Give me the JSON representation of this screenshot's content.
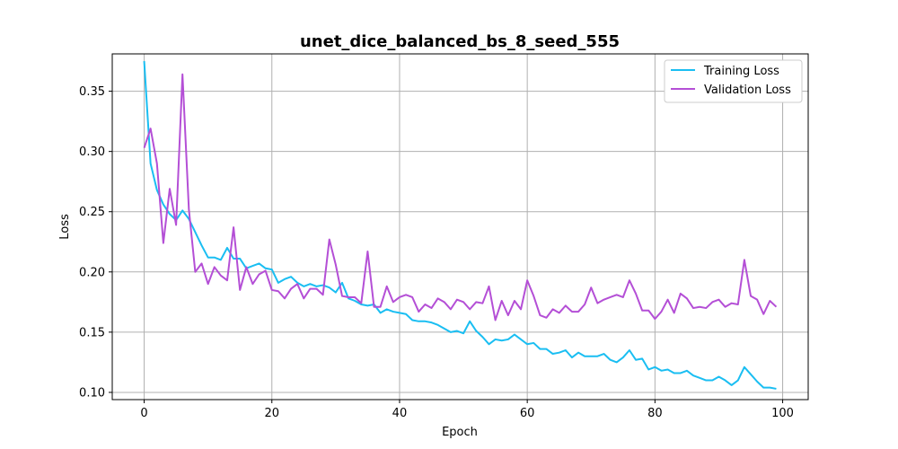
{
  "chart_data": {
    "type": "line",
    "title": "unet_dice_balanced_bs_8_seed_555",
    "xlabel": "Epoch",
    "ylabel": "Loss",
    "xlim": [
      -5,
      104
    ],
    "ylim": [
      0.094,
      0.381
    ],
    "xticks": [
      0,
      20,
      40,
      60,
      80,
      100
    ],
    "yticks": [
      0.1,
      0.15,
      0.2,
      0.25,
      0.3,
      0.35
    ],
    "xtick_labels": [
      "0",
      "20",
      "40",
      "60",
      "80",
      "100"
    ],
    "ytick_labels": [
      "0.10",
      "0.15",
      "0.20",
      "0.25",
      "0.30",
      "0.35"
    ],
    "grid": true,
    "legend_position": "top-right",
    "series": [
      {
        "name": "Training Loss",
        "color": "#1ABEF2",
        "values": [
          0.375,
          0.29,
          0.268,
          0.256,
          0.248,
          0.243,
          0.251,
          0.244,
          0.233,
          0.222,
          0.212,
          0.212,
          0.21,
          0.22,
          0.211,
          0.211,
          0.203,
          0.205,
          0.207,
          0.203,
          0.202,
          0.191,
          0.194,
          0.196,
          0.191,
          0.188,
          0.19,
          0.188,
          0.189,
          0.187,
          0.183,
          0.191,
          0.178,
          0.176,
          0.173,
          0.172,
          0.173,
          0.166,
          0.169,
          0.167,
          0.166,
          0.165,
          0.16,
          0.159,
          0.159,
          0.158,
          0.156,
          0.153,
          0.15,
          0.151,
          0.149,
          0.159,
          0.151,
          0.146,
          0.14,
          0.144,
          0.143,
          0.144,
          0.148,
          0.144,
          0.14,
          0.141,
          0.136,
          0.136,
          0.132,
          0.133,
          0.135,
          0.129,
          0.133,
          0.13,
          0.13,
          0.13,
          0.132,
          0.127,
          0.125,
          0.129,
          0.135,
          0.127,
          0.128,
          0.119,
          0.121,
          0.118,
          0.119,
          0.116,
          0.116,
          0.118,
          0.114,
          0.112,
          0.11,
          0.11,
          0.113,
          0.11,
          0.106,
          0.11,
          0.121,
          0.115,
          0.109,
          0.104,
          0.104,
          0.103
        ]
      },
      {
        "name": "Validation Loss",
        "color": "#B44FD6",
        "values": [
          0.303,
          0.319,
          0.29,
          0.224,
          0.269,
          0.239,
          0.364,
          0.252,
          0.2,
          0.207,
          0.19,
          0.204,
          0.197,
          0.193,
          0.237,
          0.185,
          0.204,
          0.19,
          0.198,
          0.201,
          0.185,
          0.184,
          0.178,
          0.186,
          0.19,
          0.178,
          0.186,
          0.186,
          0.181,
          0.227,
          0.206,
          0.18,
          0.179,
          0.179,
          0.174,
          0.217,
          0.171,
          0.171,
          0.188,
          0.175,
          0.179,
          0.181,
          0.179,
          0.167,
          0.173,
          0.17,
          0.178,
          0.175,
          0.169,
          0.177,
          0.175,
          0.169,
          0.175,
          0.174,
          0.188,
          0.16,
          0.176,
          0.164,
          0.176,
          0.169,
          0.193,
          0.18,
          0.164,
          0.162,
          0.169,
          0.166,
          0.172,
          0.167,
          0.167,
          0.173,
          0.187,
          0.174,
          0.177,
          0.179,
          0.181,
          0.179,
          0.193,
          0.182,
          0.168,
          0.168,
          0.161,
          0.167,
          0.177,
          0.166,
          0.182,
          0.178,
          0.17,
          0.171,
          0.17,
          0.175,
          0.177,
          0.171,
          0.174,
          0.173,
          0.21,
          0.18,
          0.177,
          0.165,
          0.176,
          0.171
        ]
      }
    ]
  }
}
